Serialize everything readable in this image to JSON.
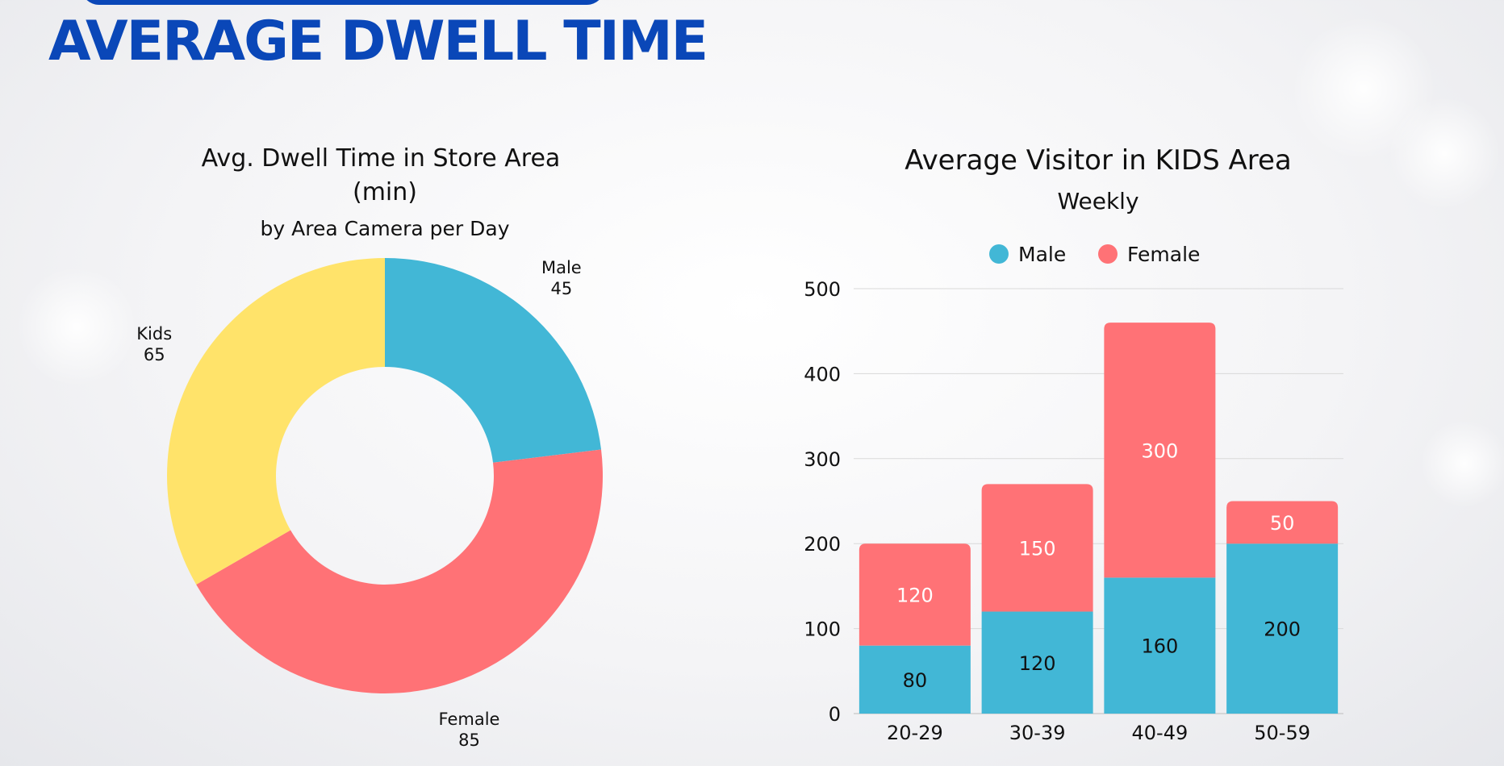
{
  "header": {
    "title": "AVERAGE DWELL TIME"
  },
  "chart_data": [
    {
      "type": "pie",
      "donut": true,
      "title": "Avg. Dwell Time in Store Area",
      "title_line2": "(min)",
      "subtitle": "by Area Camera per Day",
      "slices": [
        {
          "name": "Male",
          "value": 45,
          "color": "#42b7d6"
        },
        {
          "name": "Female",
          "value": 85,
          "color": "#ff7276"
        },
        {
          "name": "Kids",
          "value": 65,
          "color": "#ffe36a"
        }
      ]
    },
    {
      "type": "bar",
      "stacked": true,
      "title": "Average Visitor in KIDS Area",
      "subtitle": "Weekly",
      "categories": [
        "20-29",
        "30-39",
        "40-49",
        "50-59"
      ],
      "series": [
        {
          "name": "Male",
          "values": [
            80,
            120,
            160,
            200
          ],
          "color": "#42b7d6"
        },
        {
          "name": "Female",
          "values": [
            120,
            150,
            300,
            50
          ],
          "color": "#ff7276"
        }
      ],
      "ylim": [
        0,
        500
      ],
      "yticks": [
        0,
        100,
        200,
        300,
        400,
        500
      ],
      "grid": true,
      "legend": "top"
    }
  ]
}
